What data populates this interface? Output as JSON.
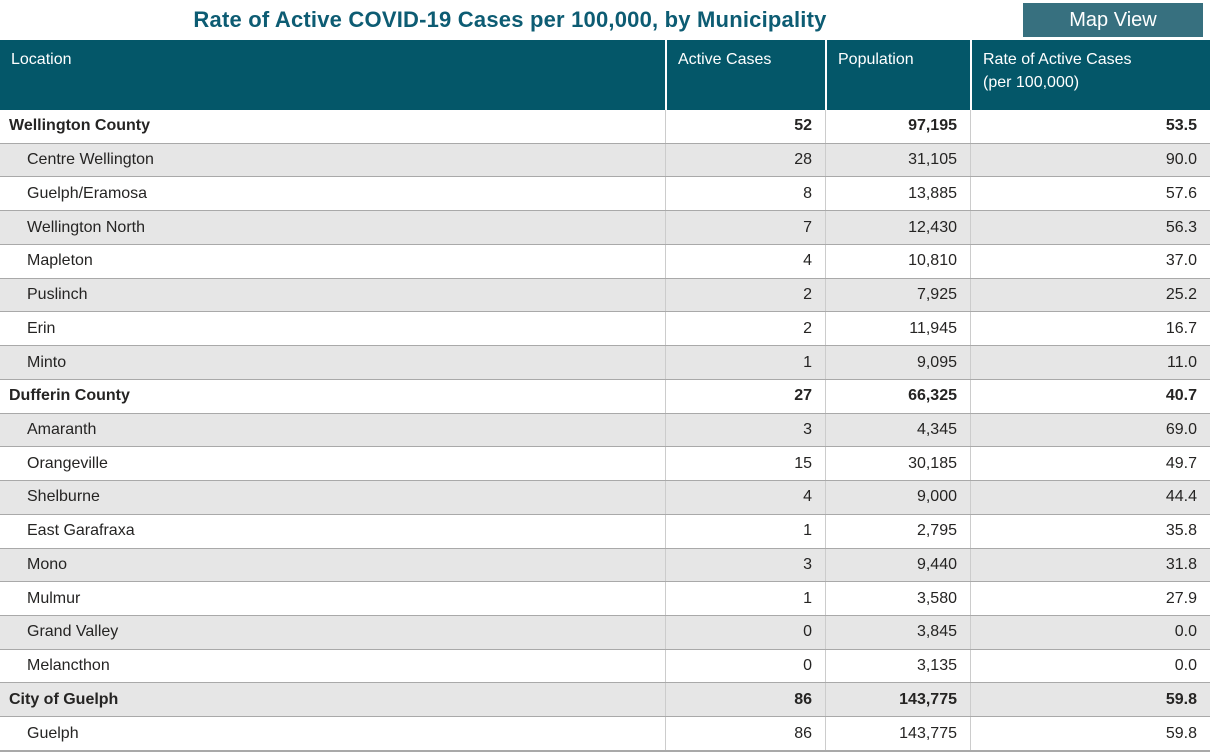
{
  "title": "Rate of Active COVID-19 Cases per 100,000, by Municipality",
  "map_view_button": "Map View",
  "colors": {
    "header_bg": "#045769",
    "button_bg": "#37707F",
    "title_text": "#0D5C73",
    "alt_row_bg": "#E6E6E6",
    "row_border": "#A9A9A9",
    "col_divider": "#CCCCCC",
    "body_text": "#252423",
    "header_text": "#FFFFFF"
  },
  "table": {
    "header": {
      "location": "Location",
      "active_cases": "Active Cases",
      "population": "Population",
      "rate_line1": "Rate of Active Cases",
      "rate_line2": "(per 100,000)"
    },
    "rows": [
      {
        "location": "Wellington County",
        "active_cases": "52",
        "population": "97,195",
        "rate": "53.5",
        "level": "county"
      },
      {
        "location": "Centre Wellington",
        "active_cases": "28",
        "population": "31,105",
        "rate": "90.0",
        "level": "muni"
      },
      {
        "location": "Guelph/Eramosa",
        "active_cases": "8",
        "population": "13,885",
        "rate": "57.6",
        "level": "muni"
      },
      {
        "location": "Wellington North",
        "active_cases": "7",
        "population": "12,430",
        "rate": "56.3",
        "level": "muni"
      },
      {
        "location": "Mapleton",
        "active_cases": "4",
        "population": "10,810",
        "rate": "37.0",
        "level": "muni"
      },
      {
        "location": "Puslinch",
        "active_cases": "2",
        "population": "7,925",
        "rate": "25.2",
        "level": "muni"
      },
      {
        "location": "Erin",
        "active_cases": "2",
        "population": "11,945",
        "rate": "16.7",
        "level": "muni"
      },
      {
        "location": "Minto",
        "active_cases": "1",
        "population": "9,095",
        "rate": "11.0",
        "level": "muni"
      },
      {
        "location": "Dufferin County",
        "active_cases": "27",
        "population": "66,325",
        "rate": "40.7",
        "level": "county"
      },
      {
        "location": "Amaranth",
        "active_cases": "3",
        "population": "4,345",
        "rate": "69.0",
        "level": "muni"
      },
      {
        "location": "Orangeville",
        "active_cases": "15",
        "population": "30,185",
        "rate": "49.7",
        "level": "muni"
      },
      {
        "location": "Shelburne",
        "active_cases": "4",
        "population": "9,000",
        "rate": "44.4",
        "level": "muni"
      },
      {
        "location": "East Garafraxa",
        "active_cases": "1",
        "population": "2,795",
        "rate": "35.8",
        "level": "muni"
      },
      {
        "location": "Mono",
        "active_cases": "3",
        "population": "9,440",
        "rate": "31.8",
        "level": "muni"
      },
      {
        "location": "Mulmur",
        "active_cases": "1",
        "population": "3,580",
        "rate": "27.9",
        "level": "muni"
      },
      {
        "location": "Grand Valley",
        "active_cases": "0",
        "population": "3,845",
        "rate": "0.0",
        "level": "muni"
      },
      {
        "location": "Melancthon",
        "active_cases": "0",
        "population": "3,135",
        "rate": "0.0",
        "level": "muni"
      },
      {
        "location": "City of Guelph",
        "active_cases": "86",
        "population": "143,775",
        "rate": "59.8",
        "level": "county"
      },
      {
        "location": "Guelph",
        "active_cases": "86",
        "population": "143,775",
        "rate": "59.8",
        "level": "muni"
      }
    ]
  }
}
